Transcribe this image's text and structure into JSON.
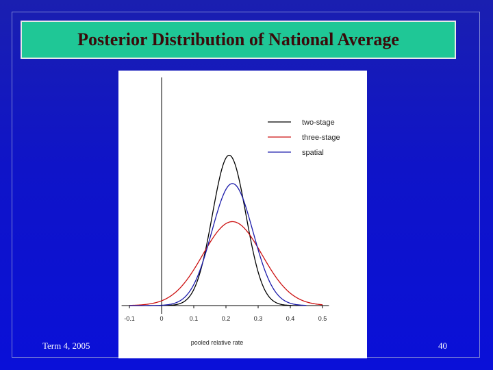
{
  "slide": {
    "title": "Posterior Distribution of National Average",
    "footer_left": "Term 4, 2005",
    "page_number": "40"
  },
  "chart_data": {
    "type": "line",
    "xlabel": "pooled relative rate",
    "ylabel": "",
    "xlim": [
      -0.12,
      0.52
    ],
    "x_ticks": [
      "-0.1",
      "0",
      "0.1",
      "0.2",
      "0.3",
      "0.4",
      "0.5"
    ],
    "x_tick_values": [
      -0.1,
      0,
      0.1,
      0.2,
      0.3,
      0.4,
      0.5
    ],
    "legend_position": "top-right",
    "series": [
      {
        "name": "two-stage",
        "color": "#000000",
        "distribution": "normal",
        "mean": 0.21,
        "sd": 0.052,
        "peak_density": 7.7,
        "x_range": [
          -0.1,
          0.42
        ]
      },
      {
        "name": "three-stage",
        "color": "#cc1010",
        "distribution": "normal",
        "mean": 0.22,
        "sd": 0.092,
        "peak_density": 4.3,
        "x_range": [
          -0.1,
          0.5
        ]
      },
      {
        "name": "spatial",
        "color": "#1a1aaa",
        "distribution": "normal",
        "mean": 0.22,
        "sd": 0.064,
        "peak_density": 6.25,
        "x_range": [
          -0.1,
          0.45
        ]
      }
    ]
  }
}
